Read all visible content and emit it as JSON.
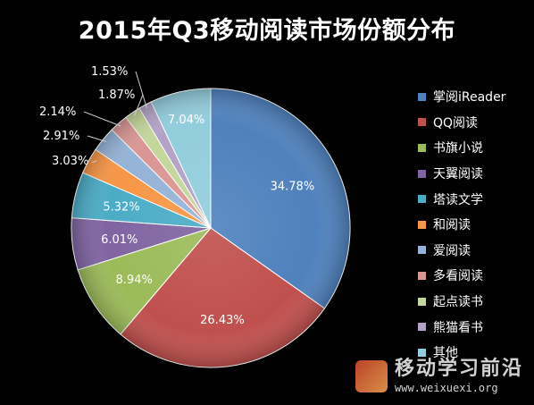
{
  "chart_data": {
    "type": "pie",
    "title": "2015年Q3移动阅读市场份额分布",
    "legend_position": "right",
    "slices": [
      {
        "label": "掌阅iReader",
        "value": 34.78,
        "value_label": "34.78%",
        "color": "#4f81bd"
      },
      {
        "label": "QQ阅读",
        "value": 26.43,
        "value_label": "26.43%",
        "color": "#c0504d"
      },
      {
        "label": "书旗小说",
        "value": 8.94,
        "value_label": "8.94%",
        "color": "#9bbb59"
      },
      {
        "label": "天翼阅读",
        "value": 6.01,
        "value_label": "6.01%",
        "color": "#8064a2"
      },
      {
        "label": "塔读文学",
        "value": 5.32,
        "value_label": "5.32%",
        "color": "#4bacc6"
      },
      {
        "label": "和阅读",
        "value": 3.03,
        "value_label": "3.03%",
        "color": "#f79646"
      },
      {
        "label": "爱阅读",
        "value": 2.91,
        "value_label": "2.91%",
        "color": "#95b3d7"
      },
      {
        "label": "多看阅读",
        "value": 2.14,
        "value_label": "2.14%",
        "color": "#da9694"
      },
      {
        "label": "起点读书",
        "value": 1.87,
        "value_label": "1.87%",
        "color": "#c3d69b"
      },
      {
        "label": "熊猫看书",
        "value": 1.53,
        "value_label": "1.53%",
        "color": "#b3a2c7"
      },
      {
        "label": "其他",
        "value": 7.04,
        "value_label": "7.04%",
        "color": "#92cddc"
      }
    ]
  },
  "watermark": {
    "name": "移动学习前沿",
    "url": "www.weixuexi.org"
  }
}
